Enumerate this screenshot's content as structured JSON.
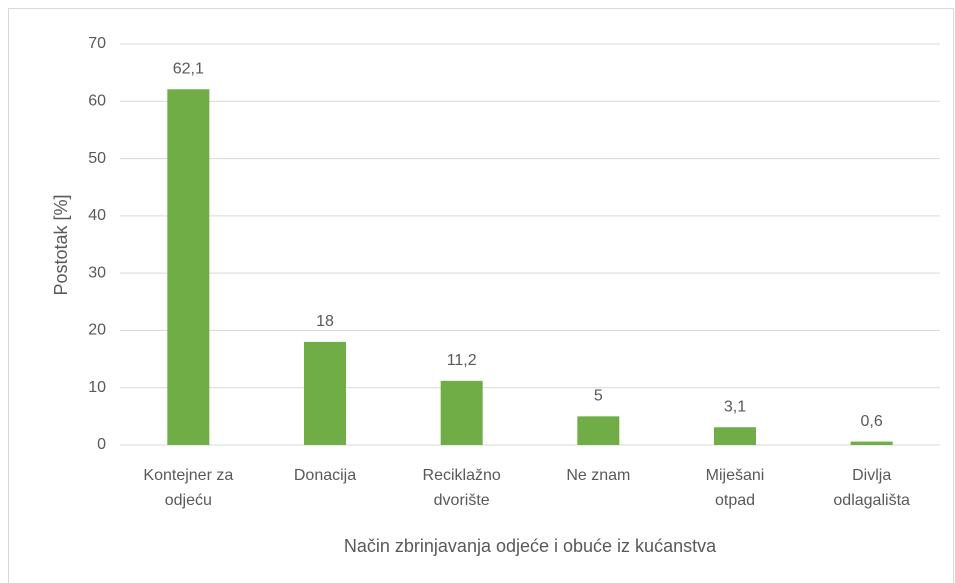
{
  "chart_data": {
    "type": "bar",
    "x_label": "Način zbrinjavanja odjeće i obuće iz kućanstva",
    "y_label": "Postotak [%]",
    "categories": [
      "Kontejner za odjeću",
      "Donacija",
      "Reciklažno dvorište",
      "Ne znam",
      "Miješani otpad",
      "Divlja odlagališta"
    ],
    "values": [
      62.1,
      18,
      11.2,
      5,
      3.1,
      0.6
    ],
    "value_labels": [
      "62,1",
      "18",
      "11,2",
      "5",
      "3,1",
      "0,6"
    ],
    "color": "#70ad47",
    "ylim": [
      0,
      70
    ],
    "yticks": [
      0,
      10,
      20,
      30,
      40,
      50,
      60,
      70
    ],
    "grid": true
  }
}
